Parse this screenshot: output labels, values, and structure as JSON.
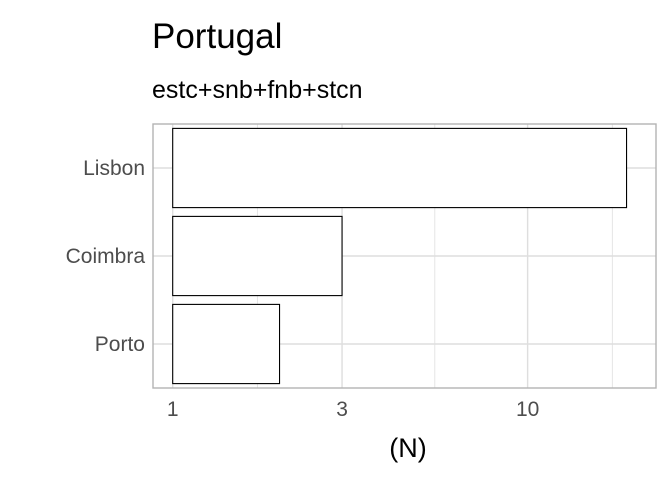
{
  "chart_data": {
    "type": "bar",
    "orientation": "horizontal",
    "title": "Portugal",
    "subtitle": "estc+snb+fnb+stcn",
    "categories": [
      "Lisbon",
      "Coimbra",
      "Porto"
    ],
    "values": [
      19,
      3,
      2
    ],
    "xlabel": "(N)",
    "ylabel": "",
    "x_scale": "log10",
    "x_ticks": [
      1,
      3,
      10
    ],
    "x_tick_labels": [
      "1",
      "3",
      "10"
    ],
    "xlim": [
      0.88,
      23
    ],
    "grid": true,
    "colors": {
      "bar_fill": "#ffffff",
      "bar_stroke": "#000000",
      "grid": "#dedede",
      "panel_border": "#b3b3b3",
      "tick_text": "#4d4d4d"
    }
  }
}
